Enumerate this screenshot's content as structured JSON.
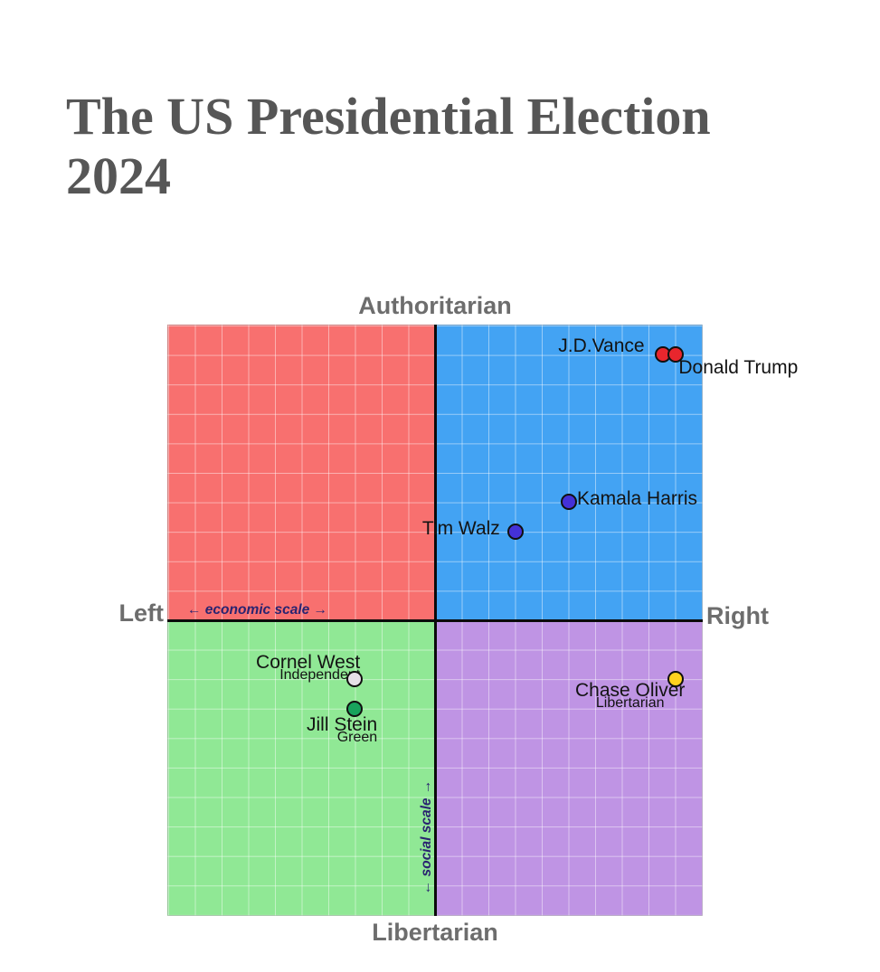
{
  "title": "The US Presidential Election 2024",
  "chart_data": {
    "type": "scatter",
    "title": "The US Presidential Election 2024",
    "x_axis": {
      "label_left": "Left",
      "label_right": "Right",
      "scale_label": "← economic scale →",
      "range": [
        -10,
        10
      ]
    },
    "y_axis": {
      "label_top": "Authoritarian",
      "label_bottom": "Libertarian",
      "scale_label": "← social scale →",
      "range": [
        -10,
        10
      ]
    },
    "grid": {
      "on": true,
      "divisions_per_axis": 20,
      "line_color": "rgba(255,255,255,0.45)"
    },
    "quadrants": [
      {
        "name": "authoritarian-left",
        "color": "#f8706f"
      },
      {
        "name": "authoritarian-right",
        "color": "#43a3f3"
      },
      {
        "name": "libertarian-left",
        "color": "#90e895"
      },
      {
        "name": "libertarian-right",
        "color": "#bf94e4"
      }
    ],
    "points": [
      {
        "id": "vance",
        "name": "J.D.Vance",
        "party": "",
        "economic": 8.5,
        "social": 9,
        "color": "#e8262d"
      },
      {
        "id": "trump",
        "name": "Donald Trump",
        "party": "",
        "economic": 9,
        "social": 9,
        "color": "#e8262d"
      },
      {
        "id": "harris",
        "name": "Kamala Harris",
        "party": "",
        "economic": 5,
        "social": 4,
        "color": "#4431d8"
      },
      {
        "id": "walz",
        "name": "Tim Walz",
        "party": "",
        "economic": 3,
        "social": 3,
        "color": "#4431d8"
      },
      {
        "id": "west",
        "name": "Cornel West",
        "party": "Independent",
        "economic": -3,
        "social": -2,
        "color": "#e6e0e8"
      },
      {
        "id": "stein",
        "name": "Jill Stein",
        "party": "Green",
        "economic": -3,
        "social": -3,
        "color": "#18a35c"
      },
      {
        "id": "oliver",
        "name": "Chase Oliver",
        "party": "Libertarian",
        "economic": 9,
        "social": -2,
        "color": "#ffd21e"
      }
    ],
    "axis_color": "#0b0b0b",
    "outer_label_color": "#6d6d6d",
    "scale_label_color": "#2a2470",
    "legend_position": "none"
  }
}
